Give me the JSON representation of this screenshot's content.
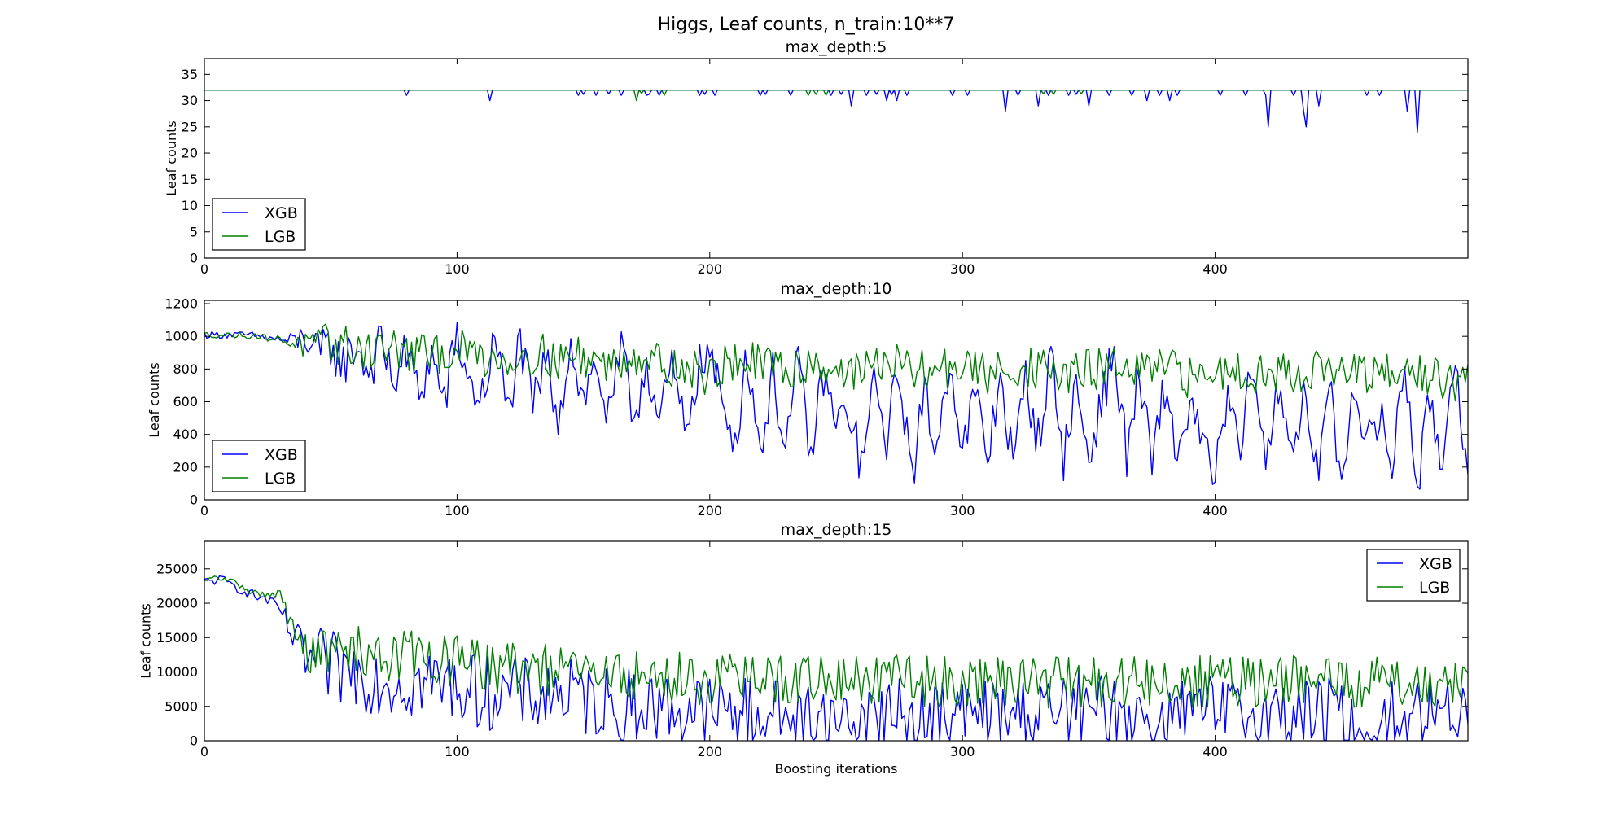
{
  "figure": {
    "title": "Higgs, Leaf counts, n_train:10**7",
    "colors": {
      "XGB": "#0000ff",
      "LGB": "#008000"
    }
  },
  "chart_data": [
    {
      "type": "line",
      "title": "max_depth:5",
      "xlabel": "",
      "ylabel": "Leaf counts",
      "xlim": [
        0,
        500
      ],
      "ylim": [
        0,
        38
      ],
      "xticks": [
        0,
        100,
        200,
        300,
        400
      ],
      "yticks": [
        0,
        5,
        10,
        15,
        20,
        25,
        30,
        35
      ],
      "legend": "lower-left",
      "baseline": 32,
      "series": [
        {
          "name": "XGB",
          "color": "#0000ff",
          "base": 32,
          "dips": [
            [
              80,
              31
            ],
            [
              113,
              30
            ],
            [
              148,
              31
            ],
            [
              150,
              31.2
            ],
            [
              155,
              31
            ],
            [
              160,
              31.3
            ],
            [
              165,
              31
            ],
            [
              175,
              31
            ],
            [
              176,
              31.2
            ],
            [
              180,
              31
            ],
            [
              196,
              31
            ],
            [
              198,
              31.2
            ],
            [
              202,
              31
            ],
            [
              220,
              31
            ],
            [
              222,
              31.2
            ],
            [
              232,
              31
            ],
            [
              248,
              31
            ],
            [
              252,
              31.2
            ],
            [
              256,
              29
            ],
            [
              262,
              31
            ],
            [
              266,
              31.2
            ],
            [
              270,
              30
            ],
            [
              272,
              31.2
            ],
            [
              274,
              30
            ],
            [
              278,
              31
            ],
            [
              296,
              31
            ],
            [
              302,
              31
            ],
            [
              317,
              28
            ],
            [
              322,
              31
            ],
            [
              330,
              29
            ],
            [
              334,
              31
            ],
            [
              342,
              31
            ],
            [
              345,
              31.2
            ],
            [
              350,
              29
            ],
            [
              358,
              31
            ],
            [
              367,
              31
            ],
            [
              373,
              30
            ],
            [
              378,
              31
            ],
            [
              382,
              30
            ],
            [
              385,
              31
            ],
            [
              402,
              31
            ],
            [
              412,
              31
            ],
            [
              420,
              31
            ],
            [
              421,
              25
            ],
            [
              431,
              31
            ],
            [
              435,
              28
            ],
            [
              436,
              25
            ],
            [
              441,
              29
            ],
            [
              460,
              31
            ],
            [
              465,
              31
            ],
            [
              476,
              28
            ],
            [
              480,
              24
            ]
          ]
        },
        {
          "name": "LGB",
          "color": "#008000",
          "base": 32,
          "dips": [
            [
              171,
              30
            ],
            [
              173,
              31.4
            ],
            [
              182,
              31
            ],
            [
              239,
              31
            ],
            [
              242,
              31.2
            ],
            [
              246,
              31
            ],
            [
              332,
              31.3
            ],
            [
              336,
              31.2
            ],
            [
              347,
              31.3
            ]
          ]
        }
      ]
    },
    {
      "type": "line",
      "title": "max_depth:10",
      "xlabel": "",
      "ylabel": "Leaf counts",
      "xlim": [
        0,
        500
      ],
      "ylim": [
        0,
        1220
      ],
      "xticks": [
        0,
        100,
        200,
        300,
        400
      ],
      "yticks": [
        0,
        200,
        400,
        600,
        800,
        1000,
        1200
      ],
      "legend": "lower-left",
      "series": [
        {
          "name": "XGB",
          "color": "#0000ff",
          "x": [
            0,
            10,
            20,
            25,
            30,
            35,
            40,
            45,
            50,
            55,
            60,
            65,
            70,
            75,
            80,
            85,
            90,
            95,
            100,
            105,
            110,
            115,
            120,
            125,
            130,
            135,
            140,
            145,
            150,
            155,
            160,
            165,
            170,
            175,
            180,
            185,
            190,
            195,
            200,
            205,
            210,
            215,
            220,
            225,
            230,
            235,
            240,
            245,
            250,
            255,
            260,
            265,
            270,
            275,
            280,
            285,
            290,
            295,
            300,
            305,
            310,
            315,
            320,
            325,
            330,
            335,
            340,
            345,
            350,
            355,
            360,
            365,
            370,
            375,
            380,
            385,
            390,
            395,
            400,
            405,
            410,
            415,
            420,
            425,
            430,
            435,
            440,
            445,
            450,
            455,
            460,
            465,
            470,
            475,
            480,
            485,
            490,
            495,
            500
          ],
          "y": [
            1010,
            1010,
            1005,
            990,
            980,
            960,
            1000,
            880,
            940,
            830,
            950,
            780,
            960,
            720,
            900,
            650,
            880,
            600,
            1000,
            700,
            620,
            980,
            540,
            960,
            560,
            860,
            520,
            950,
            600,
            840,
            480,
            900,
            500,
            860,
            450,
            820,
            420,
            780,
            900,
            560,
            380,
            880,
            300,
            760,
            330,
            840,
            260,
            780,
            440,
            560,
            200,
            700,
            380,
            800,
            150,
            640,
            300,
            900,
            280,
            660,
            240,
            780,
            200,
            740,
            360,
            880,
            260,
            700,
            240,
            620,
            880,
            280,
            760,
            200,
            700,
            260,
            600,
            320,
            120,
            640,
            260,
            880,
            180,
            720,
            340,
            580,
            160,
            700,
            100,
            760,
            300,
            520,
            200,
            860,
            80,
            600,
            220,
            960,
            70
          ],
          "jitter": 150,
          "step": 1
        },
        {
          "name": "LGB",
          "color": "#008000",
          "x": [
            0,
            20,
            25,
            30,
            35,
            40,
            45,
            50,
            60,
            70,
            80,
            90,
            100,
            110,
            120,
            130,
            140,
            150,
            160,
            170,
            180,
            190,
            200,
            210,
            220,
            230,
            240,
            250,
            260,
            270,
            280,
            290,
            300,
            310,
            320,
            330,
            340,
            350,
            360,
            370,
            380,
            390,
            400,
            410,
            420,
            430,
            440,
            450,
            460,
            470,
            480,
            490,
            500
          ],
          "y": [
            1010,
            1005,
            990,
            980,
            970,
            940,
            930,
            960,
            920,
            940,
            900,
            880,
            920,
            880,
            860,
            900,
            860,
            880,
            820,
            900,
            840,
            800,
            760,
            860,
            820,
            790,
            840,
            800,
            780,
            860,
            780,
            800,
            820,
            760,
            820,
            800,
            760,
            790,
            820,
            770,
            810,
            740,
            790,
            800,
            770,
            780,
            800,
            780,
            760,
            760,
            780,
            740,
            700
          ],
          "jitter": 130,
          "step": 1
        }
      ]
    },
    {
      "type": "line",
      "title": "max_depth:15",
      "xlabel": "Boosting iterations",
      "ylabel": "Leaf counts",
      "xlim": [
        0,
        500
      ],
      "ylim": [
        0,
        29000
      ],
      "xticks": [
        0,
        100,
        200,
        300,
        400
      ],
      "yticks": [
        0,
        5000,
        10000,
        15000,
        20000,
        25000
      ],
      "legend": "upper-right",
      "series": [
        {
          "name": "XGB",
          "color": "#0000ff",
          "x": [
            0,
            5,
            10,
            15,
            20,
            25,
            30,
            35,
            40,
            45,
            50,
            60,
            70,
            80,
            90,
            100,
            110,
            120,
            130,
            140,
            150,
            160,
            170,
            180,
            190,
            200,
            210,
            220,
            230,
            240,
            250,
            260,
            270,
            280,
            290,
            300,
            310,
            320,
            330,
            340,
            345,
            350,
            360,
            370,
            380,
            390,
            400,
            410,
            420,
            430,
            440,
            450,
            460,
            470,
            480,
            490,
            495,
            500
          ],
          "y": [
            23000,
            23500,
            22800,
            22000,
            21000,
            20500,
            19000,
            15000,
            12000,
            11000,
            10500,
            10000,
            9000,
            8500,
            8500,
            8000,
            7000,
            7000,
            6500,
            7000,
            6000,
            5500,
            5000,
            5000,
            4500,
            4500,
            4000,
            4200,
            3800,
            4000,
            3500,
            3800,
            3500,
            3500,
            3600,
            3800,
            3500,
            4000,
            3800,
            4000,
            5000,
            4200,
            4000,
            3800,
            3600,
            3800,
            4000,
            3800,
            3600,
            3800,
            4000,
            3600,
            3800,
            3400,
            3800,
            4000,
            5000,
            4500
          ],
          "jitter": 5500,
          "step": 1
        },
        {
          "name": "LGB",
          "color": "#008000",
          "x": [
            0,
            5,
            10,
            15,
            20,
            25,
            30,
            35,
            40,
            45,
            50,
            60,
            70,
            80,
            90,
            100,
            110,
            120,
            130,
            140,
            150,
            160,
            170,
            180,
            190,
            200,
            210,
            220,
            230,
            240,
            250,
            260,
            270,
            280,
            290,
            300,
            310,
            320,
            330,
            340,
            350,
            360,
            370,
            380,
            390,
            400,
            410,
            420,
            430,
            440,
            450,
            460,
            470,
            480,
            490,
            500
          ],
          "y": [
            23000,
            23800,
            23200,
            22500,
            21500,
            21000,
            21500,
            16000,
            13000,
            12500,
            13000,
            13000,
            12500,
            12500,
            12000,
            11500,
            11000,
            10500,
            10500,
            10000,
            10000,
            9500,
            9500,
            9000,
            9200,
            9000,
            9000,
            8800,
            8800,
            9000,
            8800,
            8600,
            9000,
            8800,
            8600,
            8800,
            8800,
            8600,
            8600,
            8500,
            8600,
            8600,
            8400,
            8600,
            8400,
            8800,
            8600,
            8400,
            8800,
            8600,
            8400,
            8600,
            8800,
            8400,
            8800,
            9000
          ],
          "jitter": 3800,
          "step": 1
        }
      ]
    }
  ]
}
